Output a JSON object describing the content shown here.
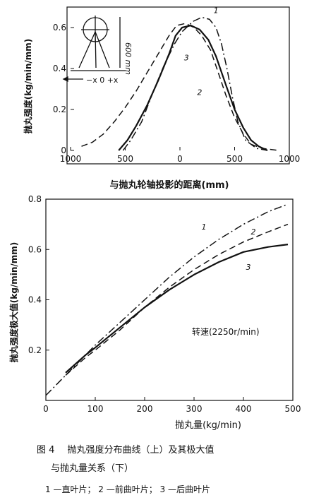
{
  "chart_data": [
    {
      "type": "line",
      "title": "",
      "xlabel": "与抛丸轮轴投影的距离(mm)",
      "ylabel": "抛丸强度(kg/min/mm)",
      "xlim": [
        -1000,
        1000
      ],
      "ylim": [
        0,
        0.7
      ],
      "x_ticks": [
        -1000,
        -500,
        0,
        500,
        1000
      ],
      "x_tick_labels": [
        "1000",
        "500",
        "0",
        "500",
        "1000"
      ],
      "y_ticks": [
        0,
        0.2,
        0.4,
        0.6
      ],
      "y_tick_labels": [
        "0",
        "0.2",
        "0.4",
        "0.6"
      ],
      "inset_labels": [
        "600 mm",
        "−x 0 +x"
      ],
      "series": [
        {
          "name": "1",
          "style": "dashdot",
          "points": [
            [
              -520,
              0
            ],
            [
              -450,
              0.05
            ],
            [
              -350,
              0.14
            ],
            [
              -250,
              0.28
            ],
            [
              -150,
              0.41
            ],
            [
              -50,
              0.52
            ],
            [
              20,
              0.58
            ],
            [
              120,
              0.63
            ],
            [
              200,
              0.65
            ],
            [
              270,
              0.64
            ],
            [
              330,
              0.6
            ],
            [
              380,
              0.52
            ],
            [
              430,
              0.4
            ],
            [
              480,
              0.26
            ],
            [
              530,
              0.14
            ],
            [
              600,
              0.05
            ],
            [
              700,
              0.01
            ],
            [
              800,
              0
            ]
          ]
        },
        {
          "name": "2",
          "style": "dashed",
          "points": [
            [
              -900,
              0.02
            ],
            [
              -800,
              0.04
            ],
            [
              -700,
              0.08
            ],
            [
              -600,
              0.14
            ],
            [
              -500,
              0.21
            ],
            [
              -400,
              0.29
            ],
            [
              -300,
              0.38
            ],
            [
              -200,
              0.47
            ],
            [
              -100,
              0.56
            ],
            [
              -30,
              0.61
            ],
            [
              50,
              0.62
            ],
            [
              130,
              0.6
            ],
            [
              200,
              0.56
            ],
            [
              280,
              0.49
            ],
            [
              350,
              0.38
            ],
            [
              420,
              0.27
            ],
            [
              500,
              0.16
            ],
            [
              580,
              0.08
            ],
            [
              650,
              0.03
            ],
            [
              750,
              0.01
            ],
            [
              900,
              0
            ]
          ]
        },
        {
          "name": "3",
          "style": "solid",
          "points": [
            [
              -560,
              0
            ],
            [
              -480,
              0.05
            ],
            [
              -400,
              0.12
            ],
            [
              -300,
              0.22
            ],
            [
              -200,
              0.34
            ],
            [
              -100,
              0.47
            ],
            [
              -40,
              0.56
            ],
            [
              20,
              0.6
            ],
            [
              100,
              0.61
            ],
            [
              180,
              0.59
            ],
            [
              260,
              0.54
            ],
            [
              330,
              0.46
            ],
            [
              420,
              0.32
            ],
            [
              500,
              0.2
            ],
            [
              580,
              0.11
            ],
            [
              650,
              0.05
            ],
            [
              720,
              0.02
            ],
            [
              800,
              0
            ]
          ]
        }
      ]
    },
    {
      "type": "line",
      "title": "",
      "xlabel": "抛丸量(kg/min)",
      "ylabel": "抛丸强度极大值(kg/min/mm)",
      "xlim": [
        0,
        500
      ],
      "ylim": [
        0,
        0.8
      ],
      "x_ticks": [
        0,
        100,
        200,
        300,
        400,
        500
      ],
      "x_tick_labels": [
        "0",
        "100",
        "200",
        "300",
        "400",
        "500"
      ],
      "y_ticks": [
        0.2,
        0.4,
        0.6,
        0.8
      ],
      "y_tick_labels": [
        "0.2",
        "0.4",
        "0.6",
        "0.8"
      ],
      "annotation": "转速(2250r/min)",
      "series": [
        {
          "name": "1",
          "style": "dashdot",
          "points": [
            [
              0,
              0.02
            ],
            [
              50,
              0.12
            ],
            [
              100,
              0.22
            ],
            [
              150,
              0.31
            ],
            [
              200,
              0.4
            ],
            [
              250,
              0.49
            ],
            [
              300,
              0.57
            ],
            [
              350,
              0.64
            ],
            [
              400,
              0.7
            ],
            [
              450,
              0.75
            ],
            [
              490,
              0.78
            ]
          ]
        },
        {
          "name": "2",
          "style": "dashed",
          "points": [
            [
              40,
              0.1
            ],
            [
              80,
              0.17
            ],
            [
              100,
              0.2
            ],
            [
              150,
              0.28
            ],
            [
              200,
              0.37
            ],
            [
              250,
              0.45
            ],
            [
              300,
              0.52
            ],
            [
              350,
              0.58
            ],
            [
              400,
              0.63
            ],
            [
              450,
              0.67
            ],
            [
              490,
              0.7
            ]
          ]
        },
        {
          "name": "3",
          "style": "solid",
          "points": [
            [
              40,
              0.11
            ],
            [
              80,
              0.18
            ],
            [
              100,
              0.21
            ],
            [
              150,
              0.29
            ],
            [
              200,
              0.37
            ],
            [
              250,
              0.44
            ],
            [
              300,
              0.5
            ],
            [
              350,
              0.55
            ],
            [
              400,
              0.59
            ],
            [
              450,
              0.61
            ],
            [
              490,
              0.62
            ]
          ]
        }
      ]
    }
  ],
  "caption": {
    "fig_no": "图 4",
    "line1": "抛丸强度分布曲线（上）及其极大值",
    "line2": "与抛丸量关系（下）",
    "legend_line": "1 —直叶片；  2 —前曲叶片；  3 —后曲叶片"
  }
}
